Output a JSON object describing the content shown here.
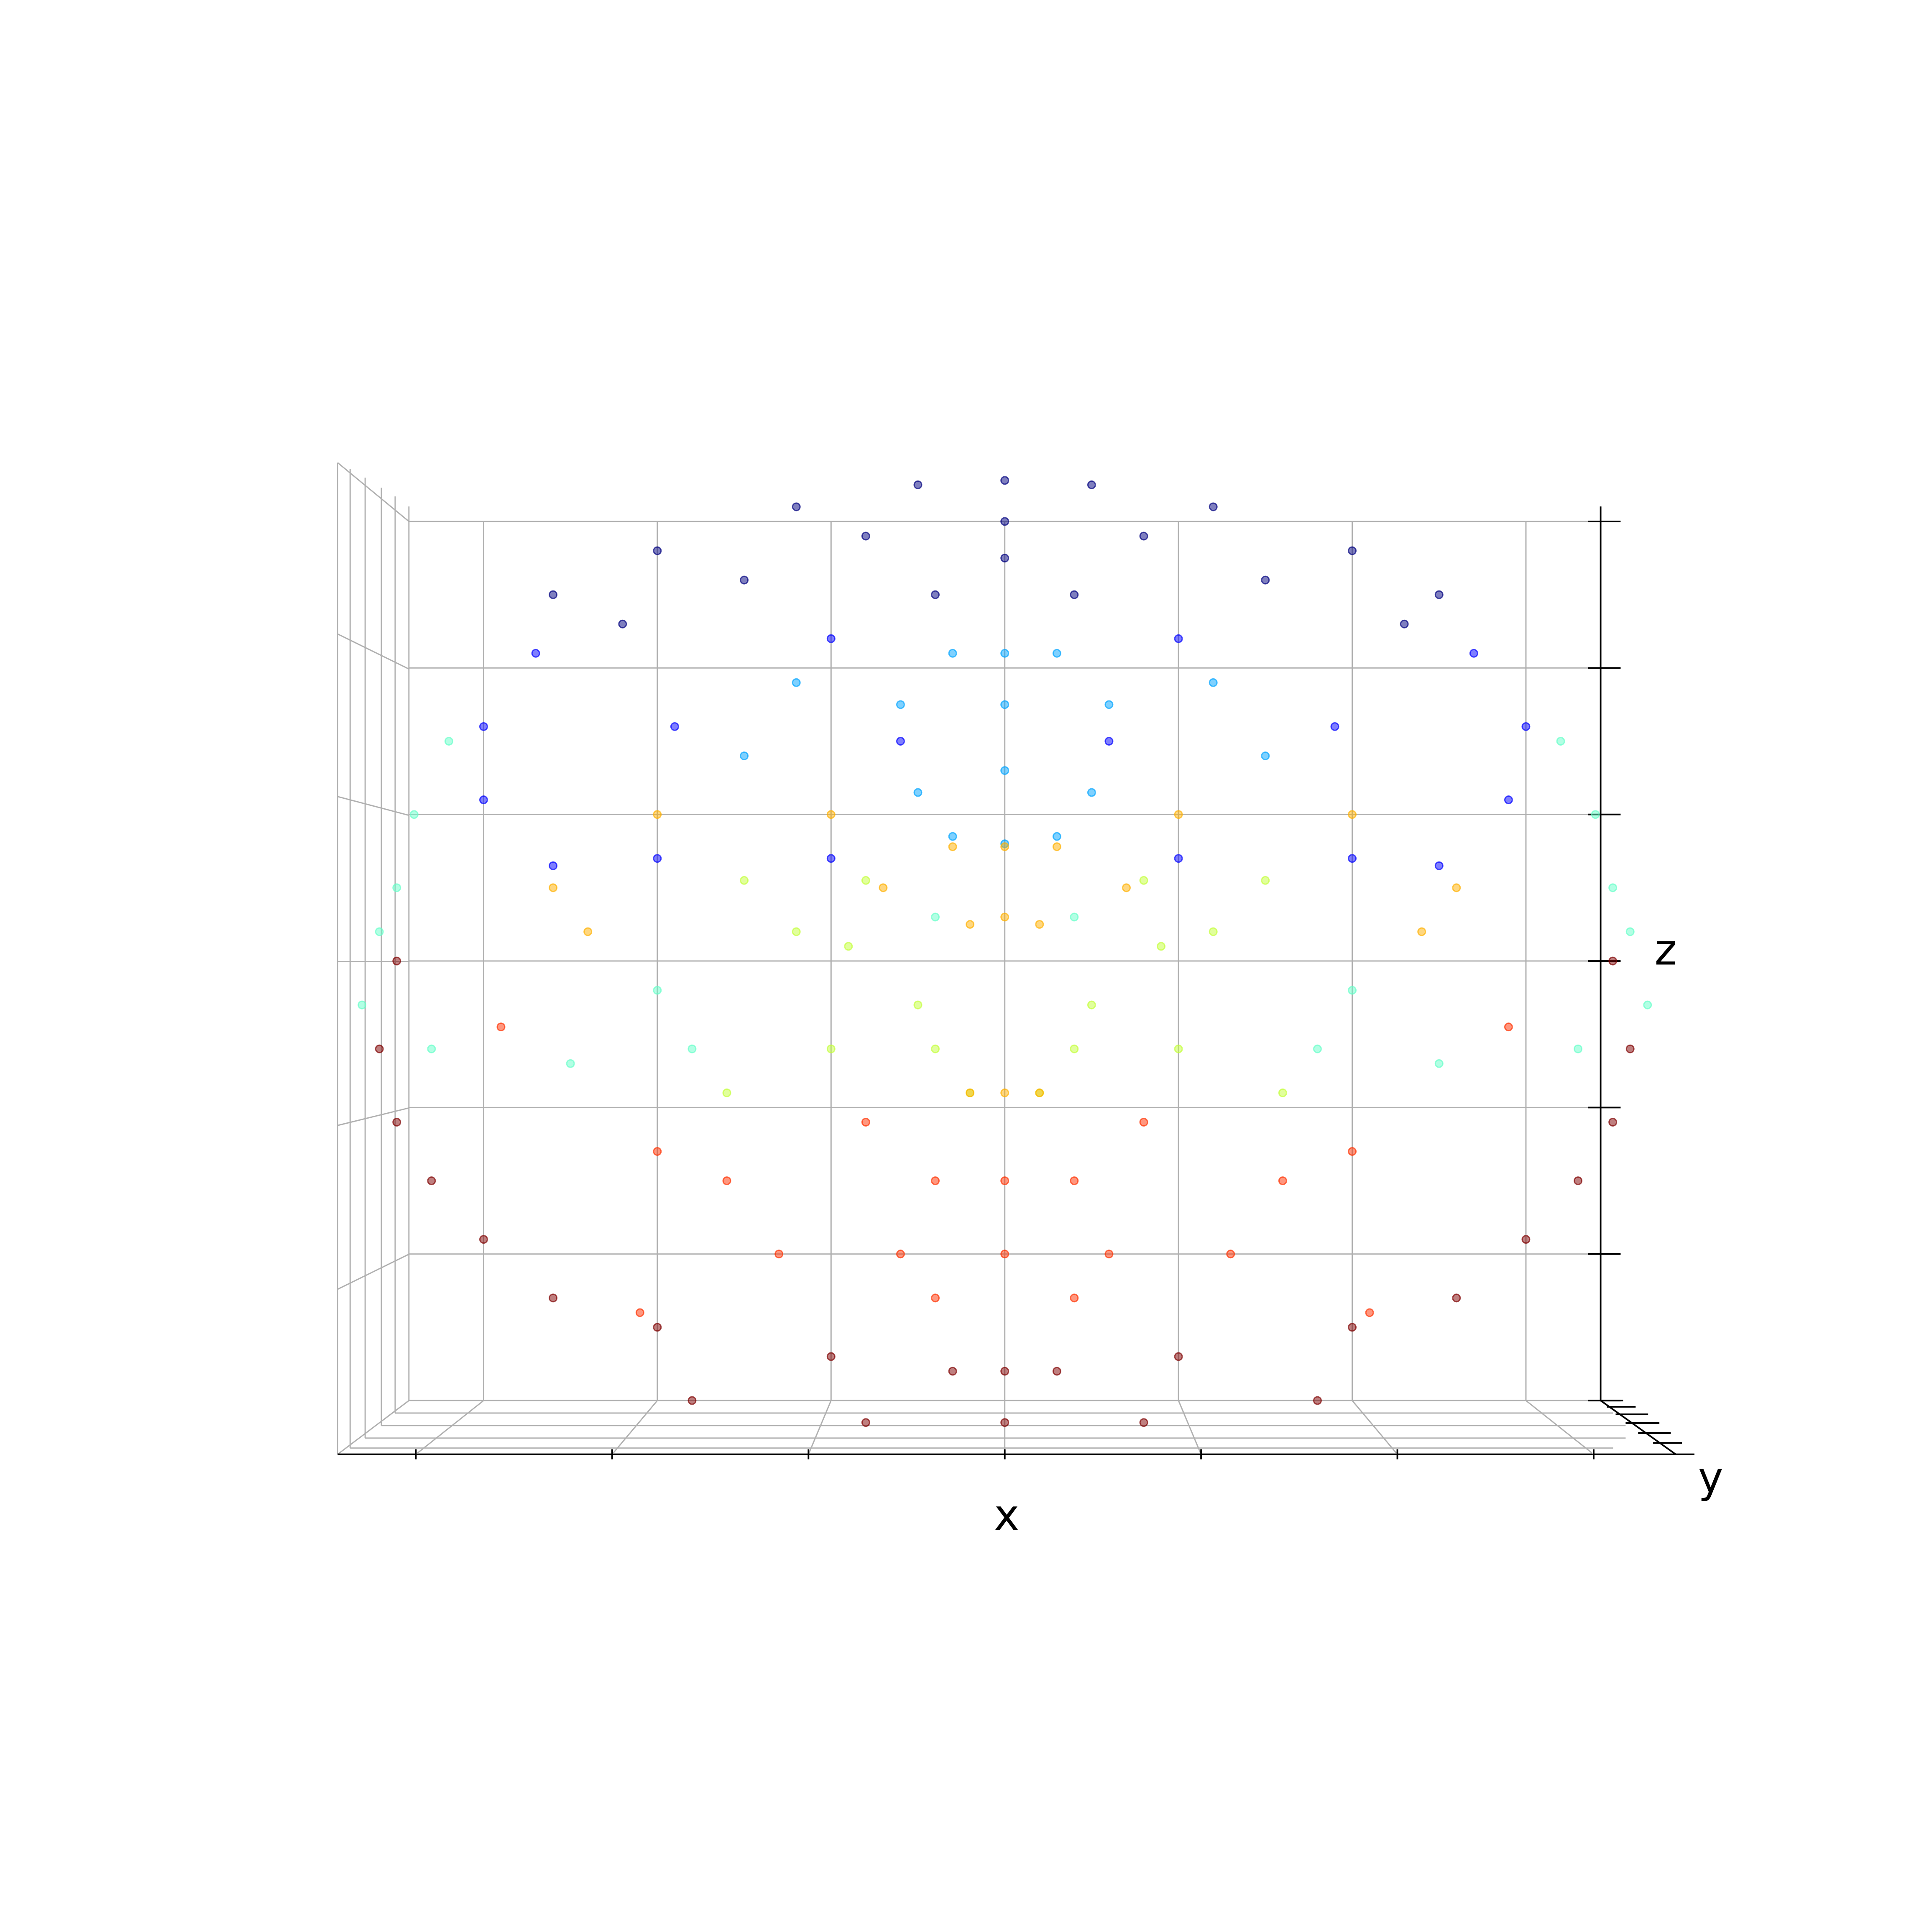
{
  "chart_data": {
    "type": "scatter",
    "x_label": "x",
    "y_label": "y",
    "z_label": "z",
    "xlim": [
      -3.43,
      3.43
    ],
    "zlim": [
      -3,
      3
    ],
    "xticks": [
      -3,
      -2,
      -1,
      0,
      1,
      2,
      3
    ],
    "zticks": [
      -3,
      -2,
      -1,
      0,
      1,
      2,
      3
    ],
    "grid": true,
    "series": [
      {
        "color": "#00007f",
        "x": [
          0,
          -0.5,
          0.5,
          -1.2,
          1.2,
          -2.0,
          2.0,
          0,
          -0.8,
          0.8,
          -2.6,
          2.5,
          0,
          -1.5,
          1.5,
          -0.4,
          0.4,
          -2.2,
          2.3
        ],
        "values": [
          3.28,
          3.25,
          3.25,
          3.1,
          3.1,
          2.8,
          2.8,
          3.0,
          2.9,
          2.9,
          2.5,
          2.5,
          2.75,
          2.6,
          2.6,
          2.5,
          2.5,
          2.3,
          2.3
        ]
      },
      {
        "color": "#0000ff",
        "x": [
          -2.7,
          2.7,
          -1.0,
          1.0,
          -3.0,
          3.0,
          -1.9,
          1.9,
          -0.6,
          0.6,
          -3.0,
          2.9,
          -2.0,
          2.0,
          -1.0,
          1.0,
          -2.6,
          2.5
        ],
        "values": [
          2.1,
          2.1,
          2.2,
          2.2,
          1.6,
          1.6,
          1.6,
          1.6,
          1.5,
          1.5,
          1.1,
          1.1,
          0.7,
          0.7,
          0.7,
          0.7,
          0.65,
          0.65
        ]
      },
      {
        "color": "#00a4ff",
        "x": [
          0,
          -0.3,
          0.3,
          -1.2,
          1.2,
          0,
          -0.6,
          0.6,
          -1.5,
          1.5,
          0,
          -0.5,
          0.5,
          -0.3,
          0.3,
          0
        ],
        "values": [
          2.1,
          2.1,
          2.1,
          1.9,
          1.9,
          1.75,
          1.75,
          1.75,
          1.4,
          1.4,
          1.3,
          1.15,
          1.15,
          0.85,
          0.85,
          0.8
        ]
      },
      {
        "color": "#66ffc9",
        "x": [
          -3.2,
          3.2,
          -3.4,
          3.4,
          -3.6,
          3.6,
          -3.5,
          3.5,
          -3.7,
          3.7,
          -3.3,
          3.3,
          -2.5,
          2.5,
          -1.8,
          1.8,
          -2.0,
          2.0,
          -0.4,
          0.4
        ],
        "values": [
          1.5,
          1.5,
          1.0,
          1.0,
          0.2,
          0.2,
          0.5,
          0.5,
          -0.3,
          -0.3,
          -0.6,
          -0.6,
          -0.7,
          -0.7,
          -0.6,
          -0.6,
          -0.2,
          -0.2,
          0.3,
          0.3
        ]
      },
      {
        "color": "#c3ff3a",
        "x": [
          -1.5,
          1.5,
          -0.8,
          0.8,
          -0.9,
          0.9,
          -0.5,
          0.5,
          -0.4,
          0.4,
          -1.0,
          1.0,
          -0.2,
          0.2,
          -1.6,
          1.6,
          -1.2,
          1.2
        ],
        "values": [
          0.55,
          0.55,
          0.55,
          0.55,
          0.1,
          0.1,
          -0.3,
          -0.3,
          -0.6,
          -0.6,
          -0.6,
          -0.6,
          -0.9,
          -0.9,
          -0.9,
          -0.9,
          0.2,
          0.2
        ]
      },
      {
        "color": "#ffb000",
        "x": [
          -2.0,
          2.0,
          -1.0,
          1.0,
          0,
          -0.3,
          0.3,
          -2.6,
          2.6,
          -0.7,
          0.7,
          -0.2,
          0.2,
          -2.4,
          2.4,
          0,
          -0.2,
          0.2,
          0
        ],
        "values": [
          1.0,
          1.0,
          1.0,
          1.0,
          0.78,
          0.78,
          0.78,
          0.5,
          0.5,
          0.5,
          0.5,
          0.25,
          0.25,
          0.2,
          0.2,
          0.3,
          -0.9,
          -0.9,
          -0.9
        ]
      },
      {
        "color": "#ff3000",
        "x": [
          -2.9,
          2.9,
          -0.8,
          0.8,
          -2.0,
          2.0,
          0,
          -0.4,
          0.4,
          -1.6,
          1.6,
          -0.6,
          0.6,
          0,
          -1.3,
          1.3,
          -0.4,
          0.4,
          -2.1,
          2.1
        ],
        "values": [
          -0.45,
          -0.45,
          -1.1,
          -1.1,
          -1.3,
          -1.3,
          -1.5,
          -1.5,
          -1.5,
          -1.5,
          -1.5,
          -2.0,
          -2.0,
          -2.0,
          -2.0,
          -2.0,
          -2.3,
          -2.3,
          -2.4,
          -2.4
        ]
      },
      {
        "color": "#7f0000",
        "x": [
          -3.5,
          3.5,
          -3.6,
          3.6,
          -3.5,
          3.5,
          -3.3,
          3.3,
          -3.0,
          3.0,
          -2.6,
          2.6,
          -2.0,
          2.0,
          -1.0,
          1.0,
          0,
          -0.3,
          0.3,
          -1.8,
          1.8,
          -0.8,
          0.8,
          0
        ],
        "values": [
          0.0,
          0.0,
          -0.6,
          -0.6,
          -1.1,
          -1.1,
          -1.5,
          -1.5,
          -1.9,
          -1.9,
          -2.3,
          -2.3,
          -2.5,
          -2.5,
          -2.7,
          -2.7,
          -2.8,
          -2.8,
          -2.8,
          -3.0,
          -3.0,
          -3.15,
          -3.15,
          -3.15
        ]
      }
    ]
  }
}
